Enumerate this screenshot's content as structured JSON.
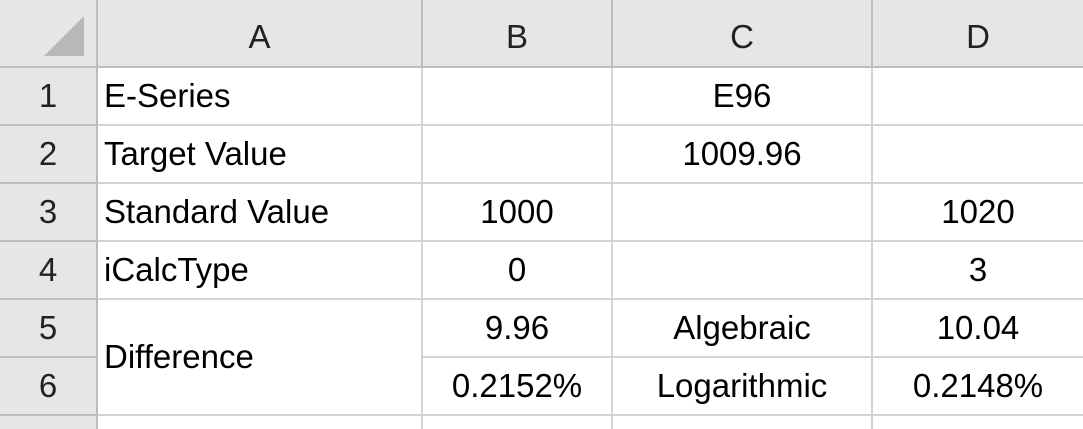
{
  "columns": [
    "A",
    "B",
    "C",
    "D"
  ],
  "rows": [
    "1",
    "2",
    "3",
    "4",
    "5",
    "6"
  ],
  "cells": {
    "A1": "E-Series",
    "C1": "E96",
    "A2": "Target Value",
    "C2": "1009.96",
    "A3": "Standard Value",
    "B3": "1000",
    "D3": "1020",
    "A4": "iCalcType",
    "B4": "0",
    "D4": "3",
    "A5": "Difference",
    "B5": "9.96",
    "C5": "Algebraic",
    "D5": "10.04",
    "B6": "0.2152%",
    "C6": "Logarithmic",
    "D6": "0.2148%"
  },
  "colors": {
    "header_bg": "#e6e6e6",
    "gridline": "#d4d4d4",
    "header_border": "#bdbdbd"
  },
  "icons": {
    "select_all": "select-all-triangle-icon"
  }
}
